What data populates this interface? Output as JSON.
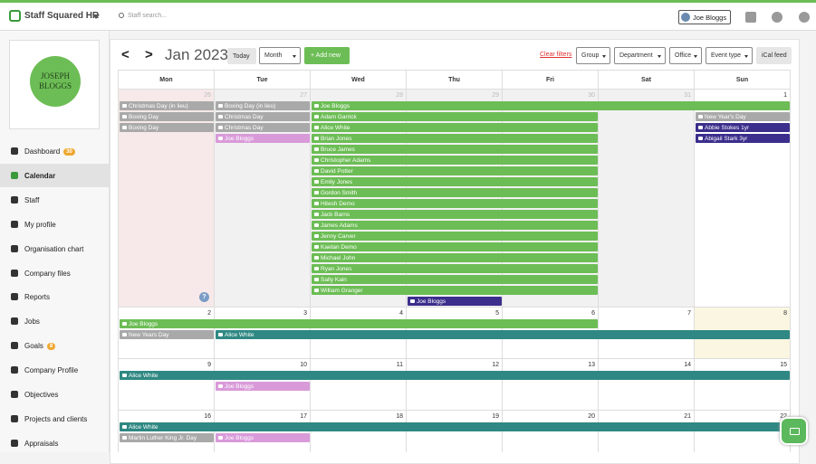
{
  "topbar": {
    "brand": "Staff Squared HR",
    "search_placeholder": "Staff search...",
    "user": "Joe Bloggs"
  },
  "sidebar": {
    "logo": [
      "JOSEPH",
      "BLOGGS"
    ],
    "nav": [
      {
        "label": "Dashboard",
        "badge": 30
      },
      {
        "label": "Calendar"
      },
      {
        "label": "Staff"
      },
      {
        "label": "My profile"
      },
      {
        "label": "Organisation chart"
      },
      {
        "label": "Company files"
      },
      {
        "label": "Reports"
      },
      {
        "label": "Jobs"
      },
      {
        "label": "Goals",
        "badge": 8
      },
      {
        "label": "Company Profile"
      },
      {
        "label": "Objectives"
      },
      {
        "label": "Projects and clients"
      },
      {
        "label": "Appraisals"
      }
    ]
  },
  "toolbar": {
    "prev": "<",
    "next": ">",
    "month": "Jan 2023",
    "today": "Today",
    "view": "Month",
    "add": "+ Add new",
    "clear_filters": "Clear filters",
    "filters": [
      "Group",
      "Department",
      "Office",
      "Event type"
    ],
    "ical": "iCal feed"
  },
  "calendar": {
    "weekdays": [
      "Mon",
      "Tue",
      "Wed",
      "Thu",
      "Fri",
      "Sat",
      "Sun"
    ],
    "help": "?",
    "weeks": [
      {
        "days": [
          26,
          27,
          28,
          29,
          30,
          31,
          1
        ],
        "events": [
          {
            "label": "Christmas Day (in lieu)"
          },
          {
            "label": "Boxing Day (in lieu)"
          },
          {
            "label": "Joe Bloggs"
          },
          {
            "label": "Boxing Day"
          },
          {
            "label": "Christmas Day"
          },
          {
            "label": "Adam Garrick"
          },
          {
            "label": "New Year's Day"
          },
          {
            "label": "Boxing Day"
          },
          {
            "label": "Christmas Day"
          },
          {
            "label": "Alice White"
          },
          {
            "label": "Abbie Stokes 1yr"
          },
          {
            "label": "Joe Bloggs"
          },
          {
            "label": "Brian Jones"
          },
          {
            "label": "Abigail Stark 3yr"
          },
          {
            "label": "Bruce James"
          },
          {
            "label": "Christopher Adams"
          },
          {
            "label": "David Potter"
          },
          {
            "label": "Emily Jones"
          },
          {
            "label": "Gordon Smith"
          },
          {
            "label": "Hitesh Demo"
          },
          {
            "label": "Jack Barns"
          },
          {
            "label": "James Adams"
          },
          {
            "label": "Jenny Carver"
          },
          {
            "label": "Kaetan Demo"
          },
          {
            "label": "Michael John"
          },
          {
            "label": "Ryan Jones"
          },
          {
            "label": "Sally Kain"
          },
          {
            "label": "William Granger"
          },
          {
            "label": "Joe Bloggs"
          }
        ]
      },
      {
        "days": [
          2,
          3,
          4,
          5,
          6,
          7,
          8
        ],
        "events": [
          {
            "label": "Joe Bloggs"
          },
          {
            "label": "New Years Day"
          },
          {
            "label": "Alice White"
          }
        ]
      },
      {
        "days": [
          9,
          10,
          11,
          12,
          13,
          14,
          15
        ],
        "events": [
          {
            "label": "Alice White"
          },
          {
            "label": "Joe Bloggs"
          }
        ]
      },
      {
        "days": [
          16,
          17,
          18,
          19,
          20,
          21,
          22
        ],
        "events": [
          {
            "label": "Alice White"
          },
          {
            "label": "Martin Luther King Jr. Day"
          },
          {
            "label": "Joe Bloggs"
          }
        ]
      }
    ]
  }
}
